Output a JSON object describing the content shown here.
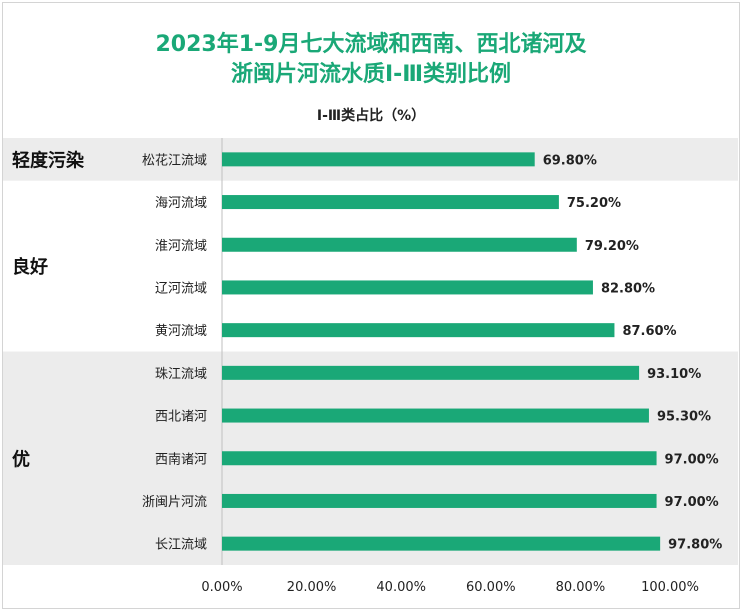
{
  "chart_data": {
    "type": "bar",
    "orientation": "horizontal",
    "title_line1": "2023年1-9月七大流域和西南、西北诸河及",
    "title_line2": "浙闽片河流水质Ⅰ-Ⅲ类别比例",
    "subtitle": "Ⅰ-Ⅲ类占比（%）",
    "categories": [
      "松花江流域",
      "海河流域",
      "淮河流域",
      "辽河流域",
      "黄河流域",
      "珠江流域",
      "西北诸河",
      "西南诸河",
      "浙闽片河流",
      "长江流域"
    ],
    "values": [
      69.8,
      75.2,
      79.2,
      82.8,
      87.6,
      93.1,
      95.3,
      97.0,
      97.0,
      97.8
    ],
    "data_labels": [
      "69.80%",
      "75.20%",
      "79.20%",
      "82.80%",
      "87.60%",
      "93.10%",
      "95.30%",
      "97.00%",
      "97.00%",
      "97.80%"
    ],
    "groups": [
      {
        "label": "轻度污染",
        "start": 0,
        "end": 0,
        "shaded": true
      },
      {
        "label": "良好",
        "start": 1,
        "end": 4,
        "shaded": false
      },
      {
        "label": "优",
        "start": 5,
        "end": 9,
        "shaded": true
      }
    ],
    "xlim": [
      0,
      100
    ],
    "xticks": [
      "0.00%",
      "20.00%",
      "40.00%",
      "60.00%",
      "80.00%",
      "100.00%"
    ],
    "bar_color": "#1aa877",
    "shade_color": "#ececec"
  }
}
